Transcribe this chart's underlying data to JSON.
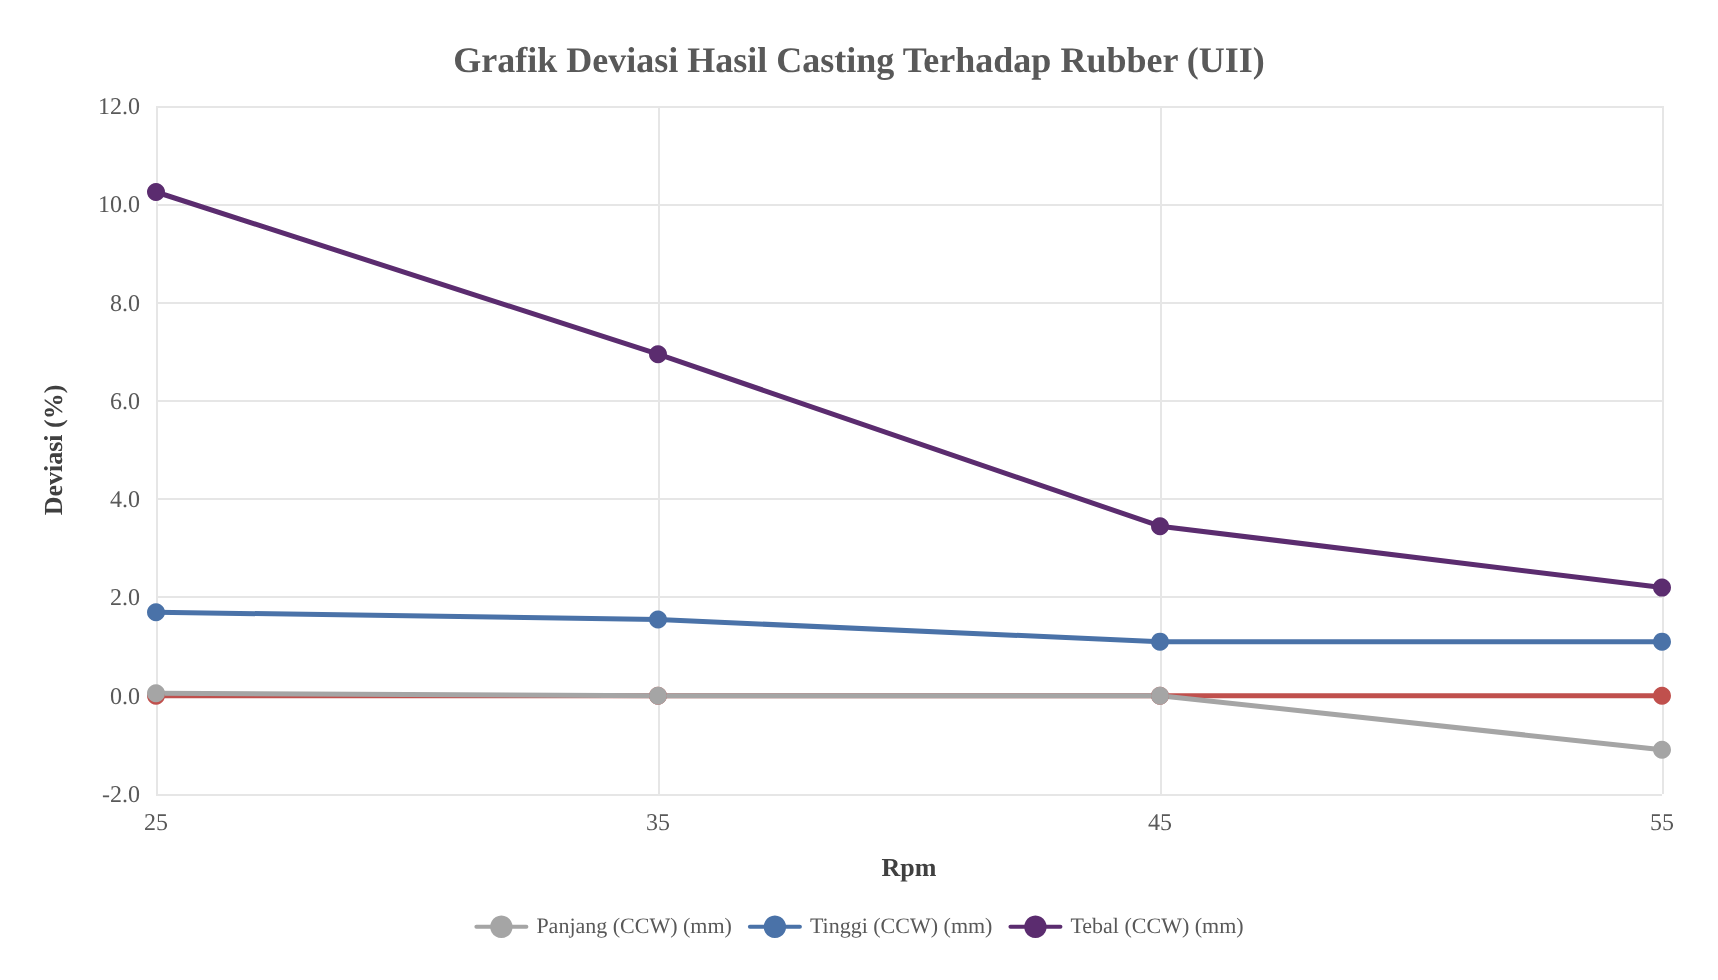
{
  "chart_data": {
    "type": "line",
    "title": "Grafik Deviasi Hasil Casting Terhadap Rubber (UII)",
    "xlabel": "Rpm",
    "ylabel": "Deviasi (%)",
    "categories": [
      "25",
      "35",
      "45",
      "55"
    ],
    "series": [
      {
        "color": "#c0504d",
        "values": [
          0,
          0,
          0,
          0
        ]
      },
      {
        "name": "Panjang (CCW) (mm)",
        "color": "#a5a5a5",
        "values": [
          0.05,
          0,
          0,
          -1.1
        ]
      },
      {
        "name": "Tinggi (CCW) (mm)",
        "color": "#4a72a8",
        "values": [
          1.7,
          1.55,
          1.1,
          1.1
        ]
      },
      {
        "name": "Tebal (CCW) (mm)",
        "color": "#5b2c6f",
        "values": [
          10.25,
          6.95,
          3.45,
          2.2
        ]
      }
    ],
    "ylim": [
      -2,
      12
    ],
    "yticks": [
      {
        "value": -2,
        "label": "-2.0"
      },
      {
        "value": 0,
        "label": "0.0"
      },
      {
        "value": 2,
        "label": "2.0"
      },
      {
        "value": 4,
        "label": "4.0"
      },
      {
        "value": 6,
        "label": "6.0"
      },
      {
        "value": 8,
        "label": "8.0"
      },
      {
        "value": 10,
        "label": "10.0"
      },
      {
        "value": 12,
        "label": "12.0"
      }
    ],
    "grid": true,
    "legend": "bottom",
    "marker": "circle",
    "line_style": "solid"
  }
}
